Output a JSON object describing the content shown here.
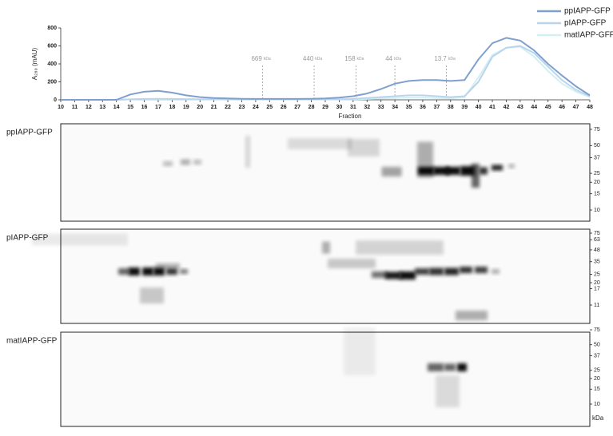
{
  "chart_data": {
    "type": "line",
    "ylabel": "A₂₈₀ (mAU)",
    "xlabel": "Fraction",
    "xlim": [
      10,
      48
    ],
    "ylim": [
      0,
      800
    ],
    "yticks": [
      0,
      200,
      400,
      600,
      800
    ],
    "xticks": [
      10,
      11,
      12,
      13,
      14,
      15,
      16,
      17,
      18,
      19,
      20,
      21,
      22,
      23,
      24,
      25,
      26,
      27,
      28,
      29,
      30,
      31,
      32,
      33,
      34,
      35,
      36,
      37,
      38,
      39,
      40,
      41,
      42,
      43,
      44,
      45,
      46,
      47,
      48
    ],
    "x": [
      10,
      11,
      12,
      13,
      14,
      15,
      16,
      17,
      18,
      19,
      20,
      21,
      22,
      23,
      24,
      25,
      26,
      27,
      28,
      29,
      30,
      31,
      32,
      33,
      34,
      35,
      36,
      37,
      38,
      39,
      40,
      41,
      42,
      43,
      44,
      45,
      46,
      47,
      48
    ],
    "series": [
      {
        "name": "ppIAPP-GFP",
        "color": "#7fa0cf",
        "values": [
          0,
          0,
          0,
          0,
          0,
          60,
          90,
          100,
          80,
          50,
          30,
          20,
          15,
          12,
          10,
          10,
          10,
          10,
          12,
          15,
          25,
          40,
          70,
          120,
          180,
          210,
          220,
          220,
          210,
          220,
          450,
          630,
          690,
          660,
          550,
          400,
          270,
          150,
          50
        ]
      },
      {
        "name": "pIAPP-GFP",
        "color": "#b9d5ec",
        "values": [
          0,
          0,
          0,
          0,
          0,
          5,
          10,
          12,
          10,
          8,
          5,
          5,
          5,
          5,
          5,
          5,
          5,
          5,
          5,
          5,
          5,
          10,
          20,
          30,
          40,
          50,
          50,
          40,
          30,
          40,
          200,
          480,
          580,
          600,
          520,
          370,
          220,
          110,
          40
        ]
      },
      {
        "name": "matIAPP-GFP",
        "color": "#d3eff3",
        "values": [
          0,
          0,
          0,
          0,
          0,
          5,
          5,
          5,
          5,
          5,
          5,
          5,
          5,
          5,
          5,
          5,
          5,
          5,
          5,
          5,
          5,
          5,
          10,
          15,
          20,
          25,
          25,
          20,
          15,
          30,
          250,
          500,
          580,
          590,
          480,
          320,
          180,
          90,
          30
        ]
      }
    ],
    "annotations": [
      {
        "x": 24.5,
        "label": "669",
        "unit": "kDa"
      },
      {
        "x": 28.2,
        "label": "440",
        "unit": "kDa"
      },
      {
        "x": 31.2,
        "label": "158",
        "unit": "kDa"
      },
      {
        "x": 34,
        "label": "44",
        "unit": "kDa"
      },
      {
        "x": 37.7,
        "label": "13.7",
        "unit": "kDa"
      }
    ]
  },
  "blots": [
    {
      "label": "ppIAPP-GFP",
      "markers": [
        75,
        50,
        37,
        25,
        20,
        15,
        10
      ]
    },
    {
      "label": "pIAPP-GFP",
      "markers": [
        75,
        63,
        48,
        35,
        25,
        20,
        17,
        11
      ]
    },
    {
      "label": "matIAPP-GFP",
      "markers": [
        75,
        50,
        37,
        25,
        20,
        15,
        10
      ]
    }
  ],
  "blot_unit": "kDa"
}
